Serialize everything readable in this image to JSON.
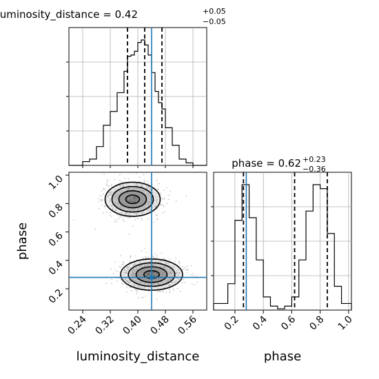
{
  "chart_data": {
    "type": "corner",
    "parameters": [
      "luminosity_distance",
      "phase"
    ],
    "truths": {
      "luminosity_distance": 0.44,
      "phase": 0.28
    },
    "accent_color": "#1f77b4",
    "hist_color": "#000000",
    "grid": true,
    "luminosity_distance": {
      "title_main": "luminosity_distance = 0.42",
      "title_sup": "+0.05",
      "title_sub": "−0.05",
      "xlabel": "luminosity_distance",
      "range": [
        0.2,
        0.6
      ],
      "ticks": [
        0.24,
        0.32,
        0.4,
        0.48,
        0.56
      ],
      "tick_labels": [
        "0.24",
        "0.32",
        "0.40",
        "0.48",
        "0.56"
      ],
      "quantiles": [
        0.37,
        0.42,
        0.47
      ],
      "bin_edges": [
        0.2,
        0.22,
        0.24,
        0.26,
        0.28,
        0.3,
        0.32,
        0.34,
        0.36,
        0.37,
        0.38,
        0.39,
        0.4,
        0.41,
        0.42,
        0.43,
        0.44,
        0.45,
        0.46,
        0.47,
        0.48,
        0.5,
        0.52,
        0.54,
        0.56,
        0.58,
        0.6
      ],
      "bin_counts": [
        0,
        0,
        0.03,
        0.05,
        0.15,
        0.32,
        0.43,
        0.58,
        0.75,
        0.87,
        0.88,
        0.91,
        0.98,
        1.0,
        0.96,
        0.88,
        0.74,
        0.59,
        0.5,
        0.45,
        0.3,
        0.16,
        0.05,
        0.02,
        0,
        0
      ]
    },
    "phase": {
      "title_main": "phase = 0.62",
      "title_sup": "+0.23",
      "title_sub": "−0.36",
      "xlabel": "phase",
      "ylabel": "phase",
      "range": [
        0.05,
        1.02
      ],
      "ticks": [
        0.2,
        0.4,
        0.6,
        0.8,
        1.0
      ],
      "tick_labels": [
        "0.2",
        "0.4",
        "0.6",
        "0.8",
        "1.0"
      ],
      "quantiles": [
        0.26,
        0.62,
        0.85
      ],
      "bin_edges": [
        0.05,
        0.1,
        0.15,
        0.2,
        0.25,
        0.3,
        0.35,
        0.4,
        0.45,
        0.5,
        0.55,
        0.6,
        0.65,
        0.7,
        0.75,
        0.8,
        0.85,
        0.9,
        0.95,
        1.0,
        1.02
      ],
      "bin_counts": [
        0.05,
        0.05,
        0.2,
        0.68,
        0.95,
        0.7,
        0.38,
        0.1,
        0.03,
        0.01,
        0.03,
        0.1,
        0.38,
        0.75,
        0.95,
        0.92,
        0.58,
        0.18,
        0.05,
        0.05
      ]
    },
    "joint": {
      "clusters": [
        {
          "x": 0.385,
          "y": 0.83,
          "sx": 0.04,
          "sy": 0.06,
          "weight": 0.5
        },
        {
          "x": 0.44,
          "y": 0.3,
          "sx": 0.045,
          "sy": 0.055,
          "weight": 0.5
        }
      ],
      "contour_levels": [
        "0.5σ",
        "1σ",
        "1.5σ",
        "2σ"
      ]
    }
  }
}
